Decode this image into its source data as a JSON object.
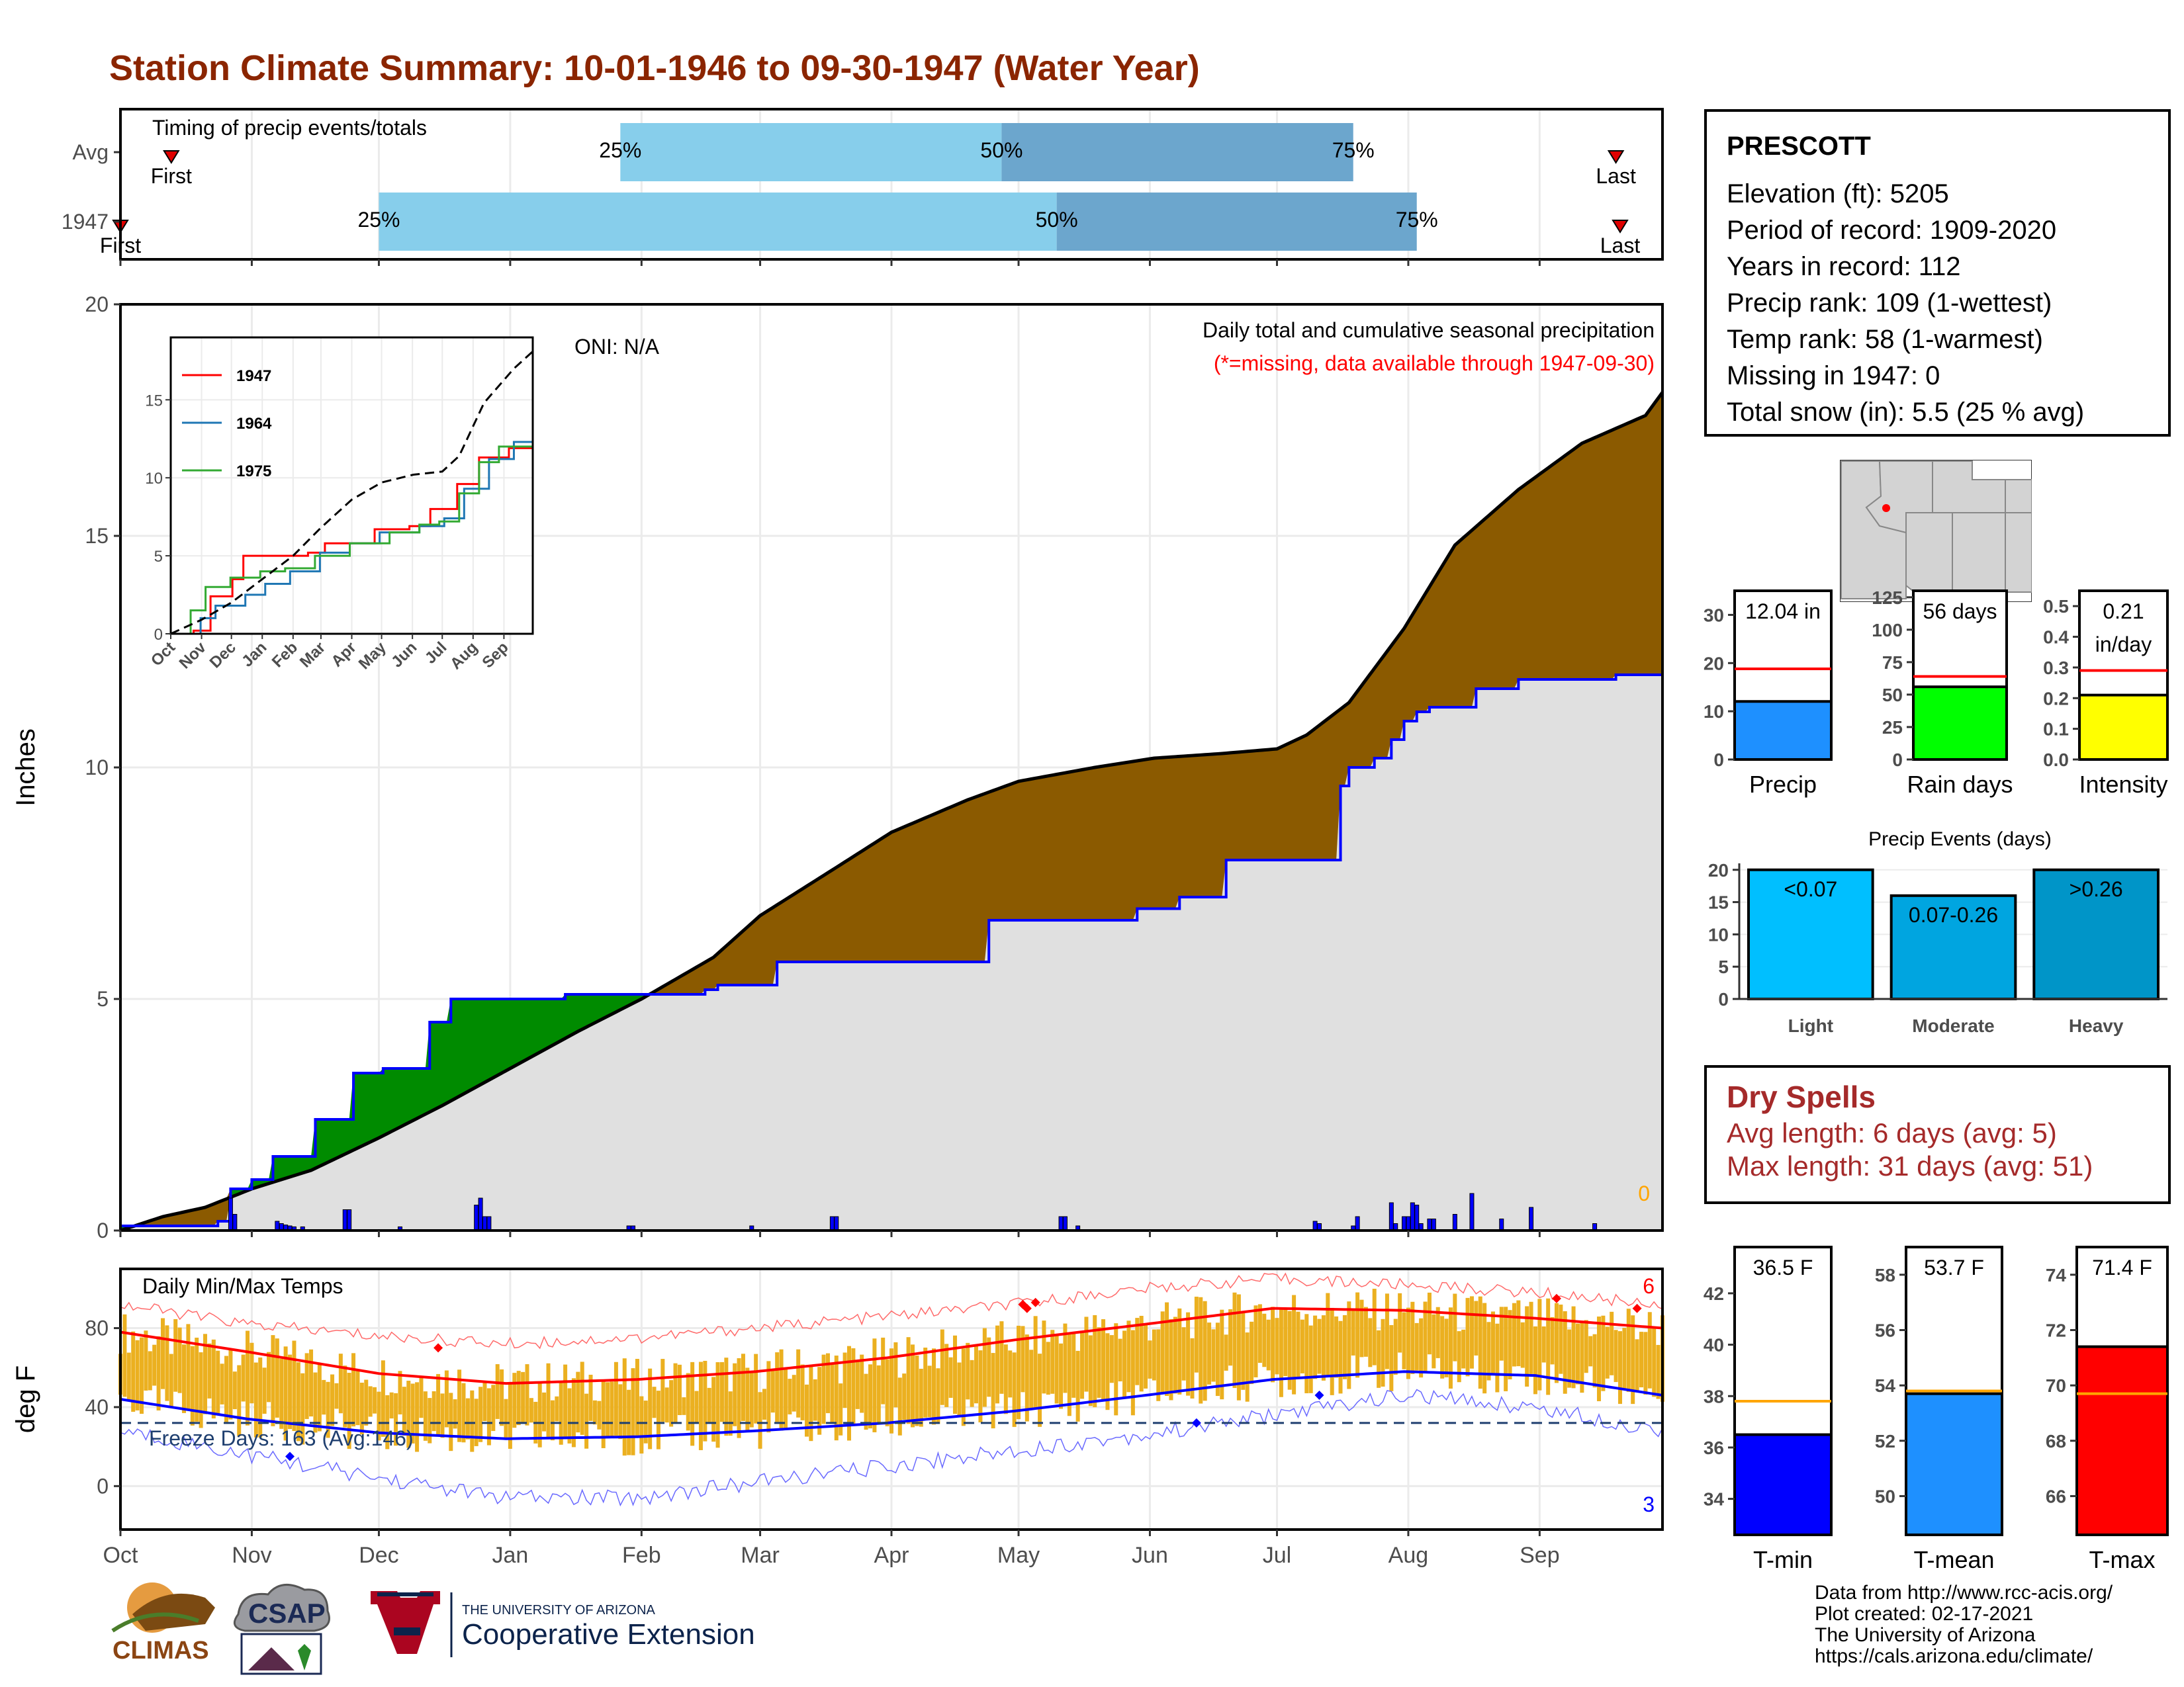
{
  "title": "Station Climate Summary: 10-01-1946 to 09-30-1947 (Water Year)",
  "station": {
    "name": "PRESCOTT",
    "rows": [
      "Elevation (ft): 5205",
      "Period of record: 1909-2020",
      "Years in record: 112",
      "Precip rank: 109 (1-wettest)",
      "Temp rank: 58 (1-warmest)",
      "Missing in 1947: 0",
      "Total snow (in): 5.5 (25 % avg)"
    ]
  },
  "dry_spells": {
    "heading": "Dry Spells",
    "avg_length": "Avg length: 6 days (avg: 5)",
    "max_length": "Max length: 31 days (avg: 51)"
  },
  "credits": [
    "Data from http://www.rcc-acis.org/",
    "Plot created: 02-17-2021",
    "The University of Arizona",
    "https://cals.arizona.edu/climate/"
  ],
  "logos": {
    "climas": "CLIMAS",
    "csap": "CSAP",
    "ua_small": "THE UNIVERSITY OF ARIZONA",
    "ua_big": "Cooperative Extension"
  },
  "colors": {
    "title": "#8B2500",
    "brown": "#8B5A00",
    "green": "#008B00",
    "grey_fill": "#E0E0E0",
    "blue": "#0000FF",
    "red": "#FF0000",
    "gold": "#EBB020",
    "light_blue": "#87CEEB",
    "mid_blue": "#6CA6CD"
  },
  "chart_data": [
    {
      "type": "bar",
      "name": "timing",
      "title": "Timing of precip events/totals",
      "rows": [
        {
          "label": "Avg",
          "first": "Oct 13",
          "q25": "Jan 27",
          "q50": "Apr 27",
          "q75": "Jul 19",
          "last": "Sep 19",
          "first_label": "First",
          "last_label": "Last"
        },
        {
          "label": "1947",
          "first": "Oct 1",
          "q25": "Dec 1",
          "q50": "May 10",
          "q75": "Aug 3",
          "last": "Sep 20",
          "first_label": "First",
          "last_label": "Last"
        }
      ],
      "pct_labels": [
        "25%",
        "50%",
        "75%"
      ],
      "x_ticks": [
        "Oct",
        "Nov",
        "Dec",
        "Jan",
        "Feb",
        "Mar",
        "Apr",
        "May",
        "Jun",
        "Jul",
        "Aug",
        "Sep"
      ]
    },
    {
      "type": "area",
      "name": "cumulative_precip",
      "ylabel": "Inches",
      "ylim": [
        0,
        20
      ],
      "yticks": [
        0,
        5,
        10,
        15,
        20
      ],
      "x_ticks": [
        "Oct",
        "Nov",
        "Dec",
        "Jan",
        "Feb",
        "Mar",
        "Apr",
        "May",
        "Jun",
        "Jul",
        "Aug",
        "Sep"
      ],
      "annotation_oni": "ONI: N/A",
      "annotation_title": "Daily total and cumulative seasonal precipitation",
      "annotation_missing": "(*=missing, data available through 1947-09-30)",
      "zero_label": "0",
      "avg_cumulative": {
        "day": [
          0,
          10,
          20,
          31,
          45,
          61,
          76,
          92,
          108,
          123,
          140,
          151,
          170,
          182,
          200,
          212,
          230,
          244,
          260,
          273,
          280,
          290,
          303,
          315,
          330,
          345,
          360,
          364
        ],
        "value": [
          0,
          0.3,
          0.5,
          0.9,
          1.3,
          2.0,
          2.7,
          3.5,
          4.3,
          5.0,
          5.9,
          6.8,
          7.9,
          8.6,
          9.3,
          9.7,
          10.0,
          10.2,
          10.3,
          10.4,
          10.7,
          11.4,
          13.0,
          14.8,
          16.0,
          17.0,
          17.6,
          18.1
        ]
      },
      "series_1947_cumulative": {
        "day": [
          0,
          23,
          26,
          31,
          36,
          46,
          55,
          62,
          71,
          73,
          78,
          80,
          87,
          100,
          105,
          138,
          141,
          155,
          165,
          170,
          184,
          205,
          214,
          220,
          227,
          238,
          240,
          250,
          261,
          288,
          290,
          296,
          300,
          303,
          306,
          309,
          320,
          330,
          340,
          353,
          364
        ],
        "value": [
          0.1,
          0.2,
          0.9,
          1.1,
          1.6,
          2.4,
          3.4,
          3.5,
          3.5,
          4.5,
          5.0,
          5.0,
          5.0,
          5.0,
          5.1,
          5.2,
          5.3,
          5.8,
          5.8,
          5.8,
          5.8,
          6.7,
          6.7,
          6.7,
          6.7,
          6.7,
          6.95,
          7.2,
          8.0,
          9.6,
          10.0,
          10.2,
          10.6,
          11.0,
          11.2,
          11.3,
          11.7,
          11.9,
          11.9,
          12.0,
          12.04
        ]
      },
      "daily_bars": {
        "day": [
          26,
          27,
          37,
          38,
          39,
          40,
          41,
          43,
          53,
          54,
          66,
          84,
          85,
          86,
          87,
          120,
          121,
          149,
          168,
          169,
          222,
          223,
          226,
          282,
          283,
          291,
          292,
          300,
          301,
          303,
          304,
          305,
          306,
          307,
          309,
          310,
          315,
          319,
          326,
          333,
          348
        ],
        "value": [
          0.7,
          0.35,
          0.2,
          0.15,
          0.12,
          0.1,
          0.08,
          0.08,
          0.45,
          0.45,
          0.08,
          0.55,
          0.7,
          0.3,
          0.3,
          0.1,
          0.1,
          0.1,
          0.3,
          0.3,
          0.3,
          0.3,
          0.1,
          0.2,
          0.15,
          0.1,
          0.3,
          0.6,
          0.15,
          0.3,
          0.3,
          0.6,
          0.55,
          0.15,
          0.25,
          0.25,
          0.35,
          0.8,
          0.25,
          0.5,
          0.15
        ]
      }
    },
    {
      "type": "line",
      "name": "inset_cumulative",
      "yticks": [
        0,
        5,
        10,
        15
      ],
      "x_ticks": [
        "Oct",
        "Nov",
        "Dec",
        "Jan",
        "Feb",
        "Mar",
        "Apr",
        "May",
        "Jun",
        "Jul",
        "Aug",
        "Sep"
      ],
      "series": [
        {
          "name": "1947",
          "color": "#FF0000",
          "x": [
            0,
            23,
            40,
            62,
            73,
            100,
            138,
            155,
            205,
            240,
            261,
            288,
            310,
            340,
            364
          ],
          "y": [
            0,
            0.2,
            2.4,
            3.5,
            5.0,
            5.0,
            5.2,
            5.8,
            6.7,
            6.9,
            8.0,
            9.6,
            11.3,
            11.9,
            12.04
          ]
        },
        {
          "name": "1964",
          "color": "#1F77B4",
          "x": [
            0,
            30,
            45,
            75,
            95,
            120,
            150,
            180,
            210,
            250,
            275,
            295,
            320,
            345,
            364
          ],
          "y": [
            0,
            1.0,
            1.8,
            2.5,
            3.2,
            4.0,
            5.2,
            5.8,
            6.5,
            6.9,
            7.4,
            9.3,
            11.2,
            12.3,
            14.0
          ]
        },
        {
          "name": "1975",
          "color": "#33AA33",
          "x": [
            0,
            20,
            35,
            60,
            90,
            115,
            145,
            180,
            220,
            250,
            270,
            290,
            310,
            330,
            364
          ],
          "y": [
            0,
            1.5,
            3.0,
            3.6,
            4.0,
            4.2,
            5.0,
            5.8,
            6.5,
            7.0,
            7.2,
            9.0,
            11.0,
            12.0,
            13.0
          ]
        },
        {
          "name": "Avg",
          "color": "#000000",
          "x": [
            0,
            31,
            61,
            92,
            123,
            151,
            182,
            212,
            244,
            273,
            290,
            315,
            345,
            364
          ],
          "y": [
            0,
            0.9,
            2.0,
            3.5,
            5.0,
            6.8,
            8.6,
            9.7,
            10.2,
            10.4,
            11.4,
            14.8,
            17.0,
            18.1
          ]
        }
      ]
    },
    {
      "type": "line",
      "name": "daily_temps",
      "title": "Daily Min/Max Temps",
      "ylabel": "deg F",
      "ylim": [
        -22,
        110
      ],
      "yticks": [
        0,
        40,
        80
      ],
      "x_ticks": [
        "Oct",
        "Nov",
        "Dec",
        "Jan",
        "Feb",
        "Mar",
        "Apr",
        "May",
        "Jun",
        "Jul",
        "Aug",
        "Sep"
      ],
      "freeze_label": "Freeze Days: 163 (Avg:146)",
      "freeze_line": 32,
      "record_high_count": "6",
      "record_low_count": "3",
      "normal_max": {
        "day": [
          0,
          30,
          61,
          91,
          122,
          150,
          181,
          211,
          242,
          272,
          303,
          334,
          364
        ],
        "value": [
          78,
          68,
          57,
          52,
          54,
          58,
          65,
          74,
          82,
          90,
          89,
          85,
          80
        ]
      },
      "normal_min": {
        "day": [
          0,
          30,
          61,
          91,
          122,
          150,
          181,
          211,
          242,
          272,
          303,
          334,
          364
        ],
        "value": [
          44,
          34,
          27,
          24,
          25,
          28,
          32,
          38,
          46,
          54,
          58,
          56,
          46
        ]
      },
      "record_max": {
        "day": [
          0,
          30,
          61,
          91,
          122,
          150,
          181,
          211,
          242,
          272,
          303,
          334,
          364
        ],
        "value": [
          92,
          82,
          76,
          72,
          75,
          80,
          86,
          92,
          100,
          105,
          102,
          98,
          92
        ]
      },
      "record_min": {
        "day": [
          0,
          30,
          61,
          91,
          122,
          150,
          181,
          211,
          242,
          272,
          303,
          334,
          364
        ],
        "value": [
          28,
          16,
          4,
          -6,
          -6,
          2,
          10,
          18,
          26,
          36,
          46,
          40,
          28
        ]
      },
      "record_high_days": [
        75,
        213,
        214,
        216,
        339,
        358
      ],
      "record_high_values": [
        70,
        92,
        90,
        93,
        95,
        90
      ],
      "record_low_days": [
        40,
        254,
        283
      ],
      "record_low_values": [
        15,
        32,
        46
      ]
    },
    {
      "type": "bar",
      "name": "precip_total",
      "xlabel": "Precip",
      "value_label": "12.04 in",
      "value": 12.04,
      "avg": 18.8,
      "ylim": [
        0,
        35
      ],
      "yticks": [
        0,
        10,
        20,
        30
      ],
      "color": "#1E90FF"
    },
    {
      "type": "bar",
      "name": "rain_days",
      "xlabel": "Rain days",
      "value_label": "56 days",
      "value": 56,
      "avg": 64,
      "ylim": [
        0,
        130
      ],
      "yticks": [
        0,
        25,
        50,
        75,
        100,
        125
      ],
      "color": "#00FF00"
    },
    {
      "type": "bar",
      "name": "intensity",
      "xlabel": "Intensity",
      "value_label": "0.21",
      "value_label2": "in/day",
      "value": 0.21,
      "avg": 0.29,
      "ylim": [
        0,
        0.55
      ],
      "yticks": [
        0.0,
        0.1,
        0.2,
        0.3,
        0.4,
        0.5
      ],
      "color": "#FFFF00",
      "ytick_labels": [
        "0.0",
        "0.1",
        "0.2",
        "0.3",
        "0.4",
        "0.5"
      ]
    },
    {
      "type": "bar",
      "name": "precip_events",
      "title": "Precip Events (days)",
      "categories": [
        "Light",
        "Moderate",
        "Heavy"
      ],
      "bar_labels": [
        "<0.07",
        "0.07-0.26",
        ">0.26"
      ],
      "values": [
        20,
        16,
        20
      ],
      "ylim": [
        0,
        21
      ],
      "yticks": [
        0,
        5,
        10,
        15,
        20
      ],
      "colors": [
        "#00BFFF",
        "#00A5E0",
        "#0095C8"
      ]
    },
    {
      "type": "bar",
      "name": "tmin",
      "xlabel": "T-min",
      "value_label": "36.5 F",
      "value": 36.5,
      "avg": 37.8,
      "ylim": [
        32.6,
        43.8
      ],
      "yticks": [
        34,
        36,
        38,
        40,
        42
      ],
      "color": "#0000FF"
    },
    {
      "type": "bar",
      "name": "tmean",
      "xlabel": "T-mean",
      "value_label": "53.7 F",
      "value": 53.7,
      "avg": 53.8,
      "ylim": [
        48.6,
        59.0
      ],
      "yticks": [
        50,
        52,
        54,
        56,
        58
      ],
      "color": "#1E90FF"
    },
    {
      "type": "bar",
      "name": "tmax",
      "xlabel": "T-max",
      "value_label": "71.4 F",
      "value": 71.4,
      "avg": 69.7,
      "ylim": [
        64.6,
        75.0
      ],
      "yticks": [
        66,
        68,
        70,
        72,
        74
      ],
      "color": "#FF0000"
    }
  ]
}
